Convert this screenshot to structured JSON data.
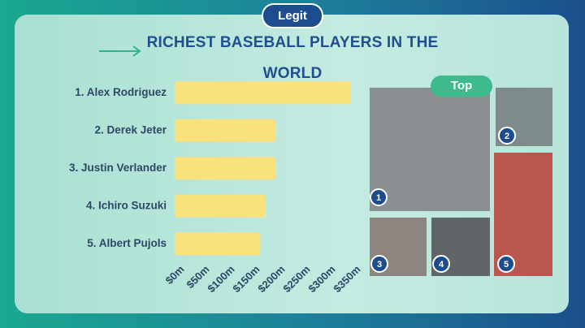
{
  "logo": "Legit",
  "badge": "Top",
  "photo_ranks": [
    1,
    2,
    3,
    4,
    5
  ],
  "chart_data": {
    "type": "bar",
    "orientation": "horizontal",
    "title": "RICHEST BASEBALL PLAYERS IN THE WORLD",
    "categories": [
      "1. Alex Rodriguez",
      "2. Derek Jeter",
      "3. Justin Verlander",
      "4. Ichiro Suzuki",
      "5. Albert Pujols"
    ],
    "values": [
      350,
      200,
      200,
      180,
      170
    ],
    "color": "#f9e27c",
    "xlim": [
      0,
      350
    ],
    "xticks": [
      {
        "value": 0,
        "label": "$0m"
      },
      {
        "value": 50,
        "label": "$50m"
      },
      {
        "value": 100,
        "label": "$100m"
      },
      {
        "value": 150,
        "label": "$150m"
      },
      {
        "value": 200,
        "label": "$200m"
      },
      {
        "value": 250,
        "label": "$250m"
      },
      {
        "value": 300,
        "label": "$300m"
      },
      {
        "value": 350,
        "label": "$350m"
      }
    ],
    "grid": false
  }
}
